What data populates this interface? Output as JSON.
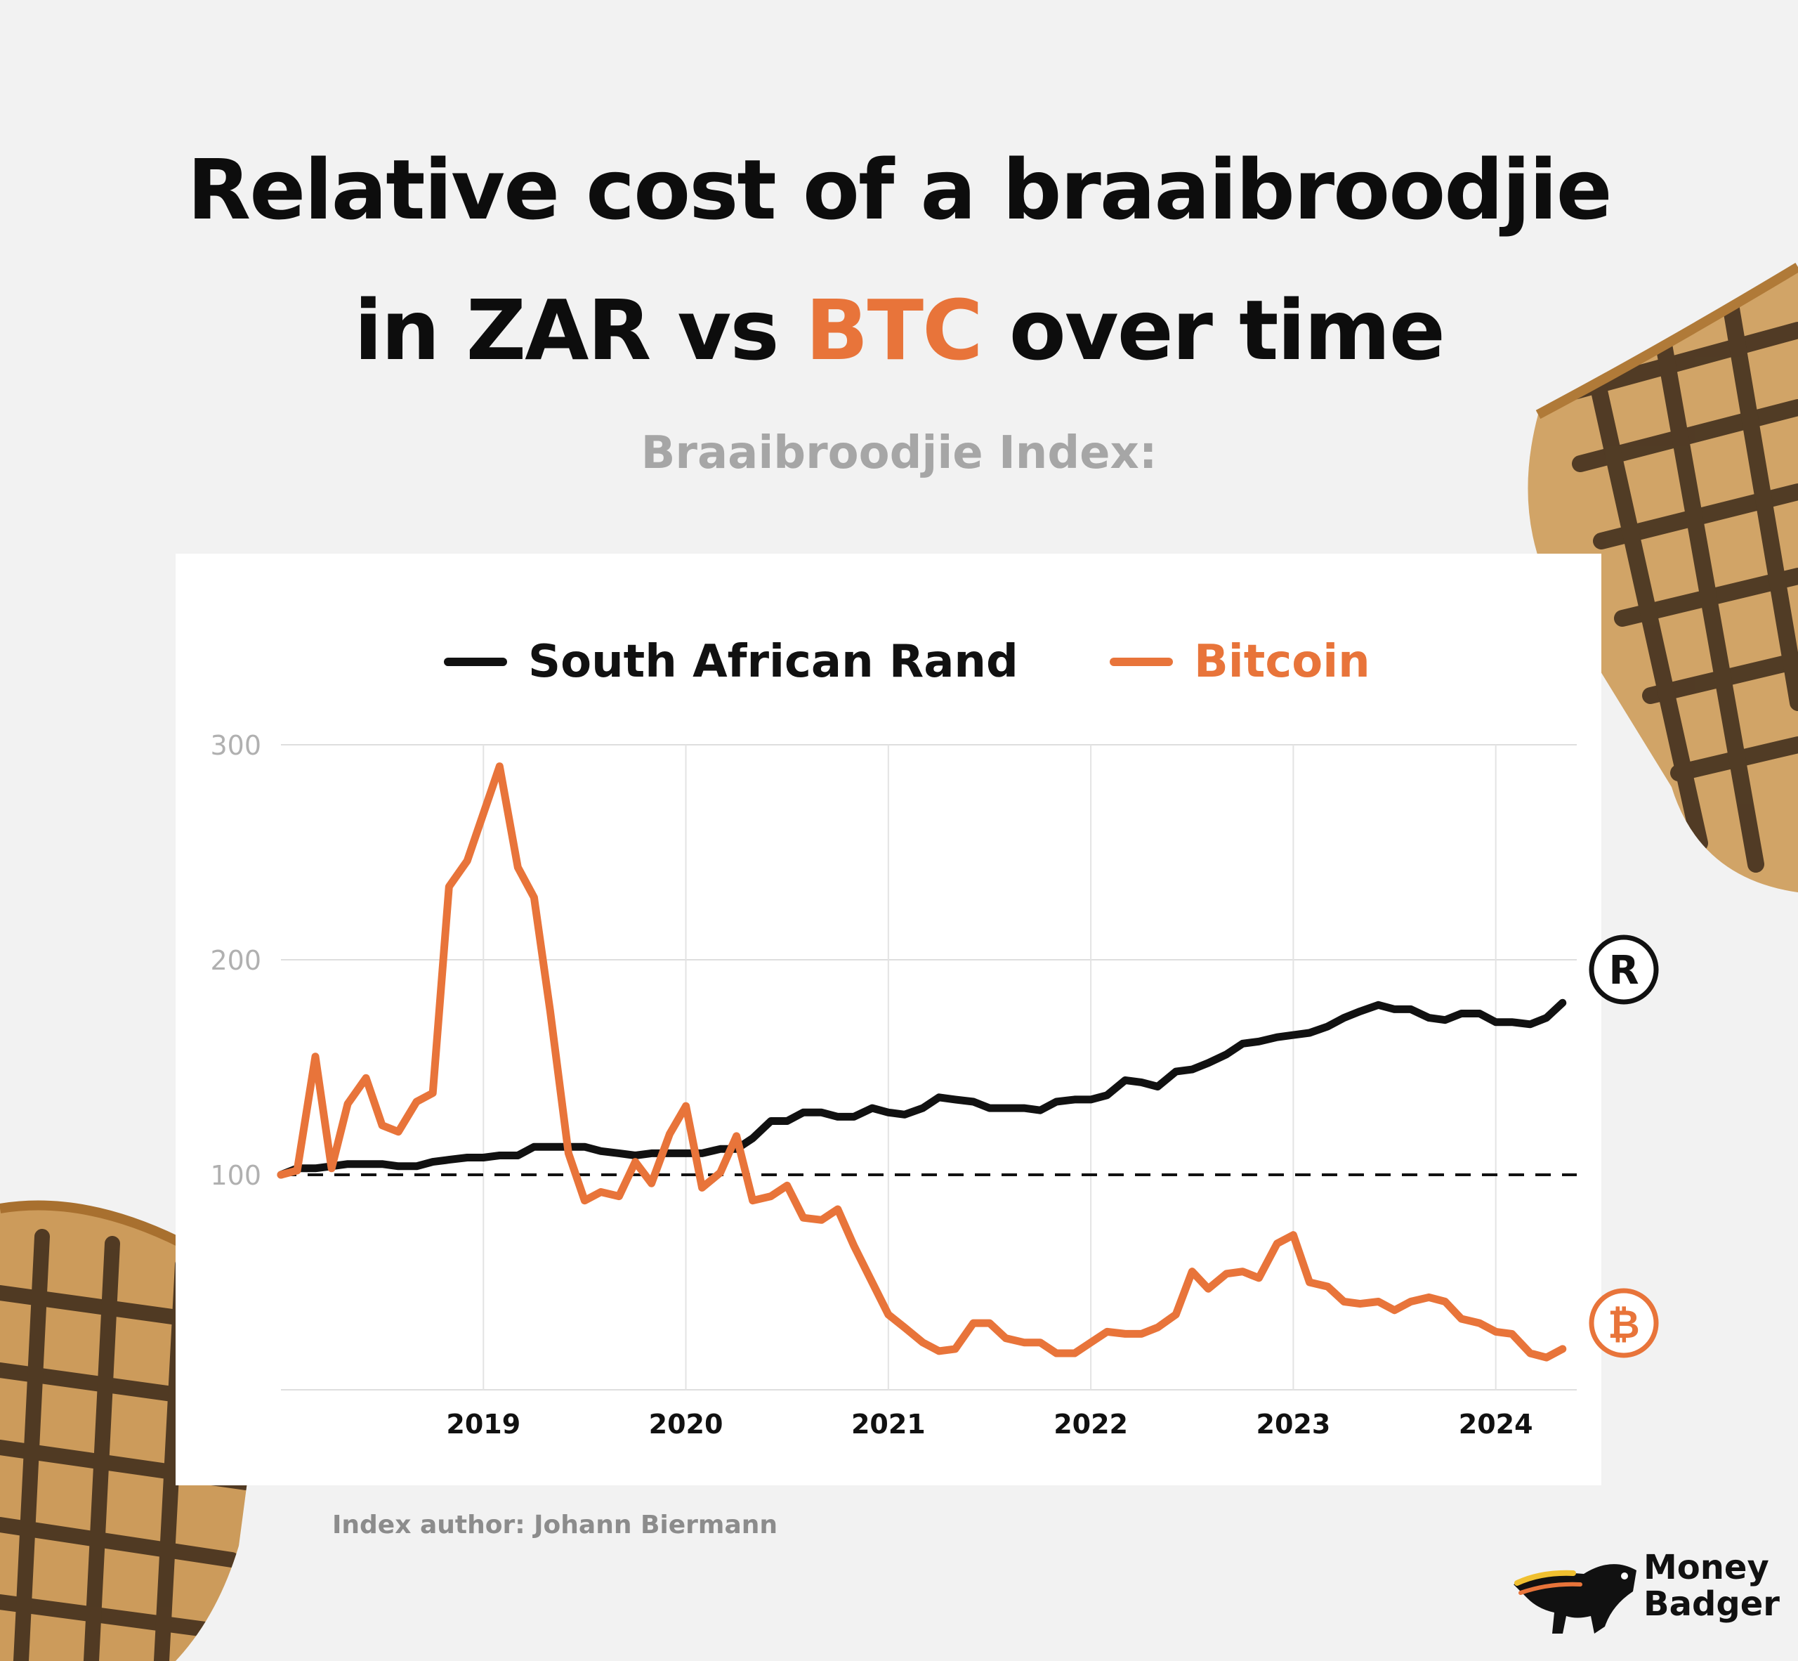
{
  "header": {
    "title_line1": "Relative cost of a braaibroodjie",
    "title_line2_a": "in ZAR vs ",
    "title_line2_accent": "BTC",
    "title_line2_b": " over time",
    "subtitle": "Braaibroodjie Index:"
  },
  "footer": {
    "credit": "Index author: Johann Biermann",
    "logo_line1": "Money",
    "logo_line2": "Badger"
  },
  "colors": {
    "rand": "#111111",
    "bitcoin": "#e8743a",
    "title_accent": "#e8743a"
  },
  "markers": {
    "rand_symbol": "R",
    "bitcoin_symbol": "₿"
  },
  "chart_data": {
    "type": "line",
    "title": "",
    "xlabel": "",
    "ylabel": "",
    "xlim": [
      2018.0,
      2024.4
    ],
    "ylim": [
      0,
      300
    ],
    "x_ticks": [
      "2019",
      "2020",
      "2021",
      "2022",
      "2023",
      "2024"
    ],
    "x_tick_values": [
      2019,
      2020,
      2021,
      2022,
      2023,
      2024
    ],
    "y_ticks": [
      "100",
      "200",
      "300"
    ],
    "y_tick_values": [
      100,
      200,
      300
    ],
    "reference_line": 100,
    "grid": true,
    "legend_position": "top",
    "series": [
      {
        "name": "South African Rand",
        "color": "#111111",
        "points": [
          [
            2018.0,
            100
          ],
          [
            2018.08,
            103
          ],
          [
            2018.17,
            103
          ],
          [
            2018.25,
            104
          ],
          [
            2018.33,
            105
          ],
          [
            2018.42,
            105
          ],
          [
            2018.5,
            105
          ],
          [
            2018.58,
            104
          ],
          [
            2018.67,
            104
          ],
          [
            2018.75,
            106
          ],
          [
            2018.83,
            107
          ],
          [
            2018.92,
            108
          ],
          [
            2019.0,
            108
          ],
          [
            2019.08,
            109
          ],
          [
            2019.17,
            109
          ],
          [
            2019.25,
            113
          ],
          [
            2019.33,
            113
          ],
          [
            2019.42,
            113
          ],
          [
            2019.5,
            113
          ],
          [
            2019.58,
            111
          ],
          [
            2019.67,
            110
          ],
          [
            2019.75,
            109
          ],
          [
            2019.83,
            110
          ],
          [
            2019.92,
            110
          ],
          [
            2020.0,
            110
          ],
          [
            2020.08,
            110
          ],
          [
            2020.17,
            112
          ],
          [
            2020.25,
            112
          ],
          [
            2020.33,
            117
          ],
          [
            2020.42,
            125
          ],
          [
            2020.5,
            125
          ],
          [
            2020.58,
            129
          ],
          [
            2020.67,
            129
          ],
          [
            2020.75,
            127
          ],
          [
            2020.83,
            127
          ],
          [
            2020.92,
            131
          ],
          [
            2021.0,
            129
          ],
          [
            2021.08,
            128
          ],
          [
            2021.17,
            131
          ],
          [
            2021.25,
            136
          ],
          [
            2021.33,
            135
          ],
          [
            2021.42,
            134
          ],
          [
            2021.5,
            131
          ],
          [
            2021.58,
            131
          ],
          [
            2021.67,
            131
          ],
          [
            2021.75,
            130
          ],
          [
            2021.83,
            134
          ],
          [
            2021.92,
            135
          ],
          [
            2022.0,
            135
          ],
          [
            2022.08,
            137
          ],
          [
            2022.17,
            144
          ],
          [
            2022.25,
            143
          ],
          [
            2022.33,
            141
          ],
          [
            2022.42,
            148
          ],
          [
            2022.5,
            149
          ],
          [
            2022.58,
            152
          ],
          [
            2022.67,
            156
          ],
          [
            2022.75,
            161
          ],
          [
            2022.83,
            162
          ],
          [
            2022.92,
            164
          ],
          [
            2023.0,
            165
          ],
          [
            2023.08,
            166
          ],
          [
            2023.17,
            169
          ],
          [
            2023.25,
            173
          ],
          [
            2023.33,
            176
          ],
          [
            2023.42,
            179
          ],
          [
            2023.5,
            177
          ],
          [
            2023.58,
            177
          ],
          [
            2023.67,
            173
          ],
          [
            2023.75,
            172
          ],
          [
            2023.83,
            175
          ],
          [
            2023.92,
            175
          ],
          [
            2024.0,
            171
          ],
          [
            2024.08,
            171
          ],
          [
            2024.17,
            170
          ],
          [
            2024.25,
            173
          ],
          [
            2024.33,
            180
          ]
        ]
      },
      {
        "name": "Bitcoin",
        "color": "#e8743a",
        "points": [
          [
            2018.0,
            100
          ],
          [
            2018.08,
            102
          ],
          [
            2018.17,
            155
          ],
          [
            2018.25,
            103
          ],
          [
            2018.33,
            133
          ],
          [
            2018.42,
            145
          ],
          [
            2018.5,
            123
          ],
          [
            2018.58,
            120
          ],
          [
            2018.67,
            134
          ],
          [
            2018.75,
            138
          ],
          [
            2018.83,
            234
          ],
          [
            2018.92,
            246
          ],
          [
            2019.08,
            290
          ],
          [
            2019.17,
            243
          ],
          [
            2019.25,
            229
          ],
          [
            2019.33,
            176
          ],
          [
            2019.42,
            110
          ],
          [
            2019.5,
            88
          ],
          [
            2019.58,
            92
          ],
          [
            2019.67,
            90
          ],
          [
            2019.75,
            106
          ],
          [
            2019.83,
            96
          ],
          [
            2019.92,
            119
          ],
          [
            2020.0,
            132
          ],
          [
            2020.08,
            94
          ],
          [
            2020.17,
            101
          ],
          [
            2020.25,
            118
          ],
          [
            2020.33,
            88
          ],
          [
            2020.42,
            90
          ],
          [
            2020.5,
            95
          ],
          [
            2020.58,
            80
          ],
          [
            2020.67,
            79
          ],
          [
            2020.75,
            84
          ],
          [
            2020.83,
            67
          ],
          [
            2020.92,
            50
          ],
          [
            2021.0,
            35
          ],
          [
            2021.08,
            29
          ],
          [
            2021.17,
            22
          ],
          [
            2021.25,
            18
          ],
          [
            2021.33,
            19
          ],
          [
            2021.42,
            31
          ],
          [
            2021.5,
            31
          ],
          [
            2021.58,
            24
          ],
          [
            2021.67,
            22
          ],
          [
            2021.75,
            22
          ],
          [
            2021.83,
            17
          ],
          [
            2021.92,
            17
          ],
          [
            2022.0,
            22
          ],
          [
            2022.08,
            27
          ],
          [
            2022.17,
            26
          ],
          [
            2022.25,
            26
          ],
          [
            2022.33,
            29
          ],
          [
            2022.42,
            35
          ],
          [
            2022.5,
            55
          ],
          [
            2022.58,
            47
          ],
          [
            2022.67,
            54
          ],
          [
            2022.75,
            55
          ],
          [
            2022.83,
            52
          ],
          [
            2022.92,
            68
          ],
          [
            2023.0,
            72
          ],
          [
            2023.08,
            50
          ],
          [
            2023.17,
            48
          ],
          [
            2023.25,
            41
          ],
          [
            2023.33,
            40
          ],
          [
            2023.42,
            41
          ],
          [
            2023.5,
            37
          ],
          [
            2023.58,
            41
          ],
          [
            2023.67,
            43
          ],
          [
            2023.75,
            41
          ],
          [
            2023.83,
            33
          ],
          [
            2023.92,
            31
          ],
          [
            2024.0,
            27
          ],
          [
            2024.08,
            26
          ],
          [
            2024.17,
            17
          ],
          [
            2024.25,
            15
          ],
          [
            2024.33,
            19
          ]
        ]
      }
    ]
  }
}
